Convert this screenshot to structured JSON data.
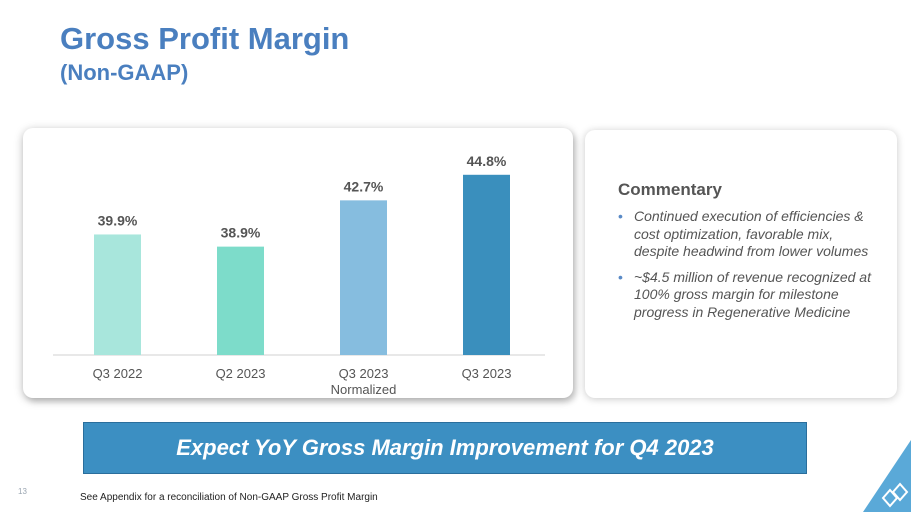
{
  "header": {
    "title": "Gross Profit Margin",
    "subtitle": "(Non-GAAP)"
  },
  "chart_data": {
    "type": "bar",
    "title": "",
    "categories": [
      "Q3 2022",
      "Q2 2023",
      "Q3 2023\nNormalized",
      "Q3 2023"
    ],
    "values": [
      39.9,
      38.9,
      42.7,
      44.8
    ],
    "data_labels": [
      "39.9%",
      "38.9%",
      "42.7%",
      "44.8%"
    ],
    "colors": [
      "#a8e6dc",
      "#7ddcca",
      "#86bddf",
      "#3a8fbd"
    ],
    "ylim": [
      30,
      47
    ],
    "xlabel": "",
    "ylabel": "",
    "grid": false
  },
  "commentary": {
    "title": "Commentary",
    "bullet_glyph": "•",
    "items": [
      "Continued execution of efficiencies & cost optimization, favorable mix, despite headwind from lower volumes",
      "~$4.5 million of revenue recognized at 100% gross margin for milestone progress in Regenerative Medicine"
    ]
  },
  "banner": {
    "text": "Expect YoY Gross Margin Improvement for Q4 2023"
  },
  "footer": {
    "page_number": "13",
    "note": "See Appendix for a reconciliation of Non-GAAP Gross Profit Margin"
  },
  "brand": {
    "accent": "#4a7fbf",
    "banner_color": "#3c8fc2",
    "corner_color": "#5aa9d8"
  }
}
